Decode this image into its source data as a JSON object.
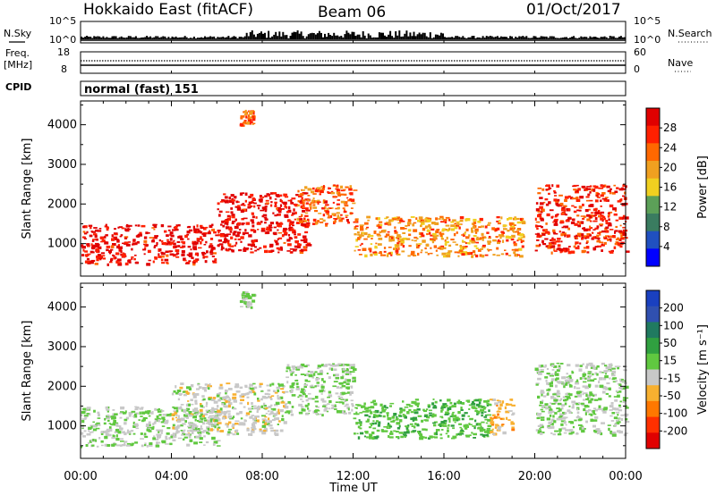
{
  "header": {
    "station": "Hokkaido East (fitACF)",
    "beam": "Beam 06",
    "date": "01/Oct/2017"
  },
  "status_panels": {
    "nsky_label": "N.Sky",
    "nsearch_label": "N.Search",
    "freq_label": "Freq.",
    "freq_unit": "[MHz]",
    "nave_label": "Nave",
    "cpid_label": "CPID",
    "cpid_text": "normal (fast) 151",
    "noise_ticks": [
      "10^5",
      "10^0"
    ],
    "freq_ticks": [
      "18",
      "8"
    ],
    "nave_ticks": [
      "60",
      "0"
    ]
  },
  "chart_data": [
    {
      "type": "heatmap",
      "title": "",
      "xlabel": "Time UT",
      "ylabel": "Slant Range [km]",
      "xlim": [
        0,
        24
      ],
      "ylim": [
        180,
        4600
      ],
      "x_ticks": [
        "00:00",
        "04:00",
        "08:00",
        "12:00",
        "16:00",
        "20:00",
        "00:00"
      ],
      "y_ticks": [
        "1000",
        "2000",
        "3000",
        "4000"
      ],
      "colorbar": {
        "label": "Power [dB]",
        "ticks": [
          "28",
          "24",
          "20",
          "16",
          "12",
          "8",
          "4"
        ],
        "range": [
          0,
          30
        ],
        "colors": [
          "#0000ff",
          "#2050c0",
          "#3a7c60",
          "#5ca058",
          "#f0d020",
          "#f0a020",
          "#ff6800",
          "#ff2000",
          "#e00000"
        ]
      },
      "echo_regions": [
        {
          "t_start": 0.0,
          "t_end": 6.0,
          "range_low": 500,
          "range_high": 1500,
          "value": 28
        },
        {
          "t_start": 6.0,
          "t_end": 10.0,
          "range_low": 800,
          "range_high": 2300,
          "value": 28
        },
        {
          "t_start": 9.5,
          "t_end": 12.0,
          "range_low": 1500,
          "range_high": 2500,
          "value": 22
        },
        {
          "t_start": 12.0,
          "t_end": 19.5,
          "range_low": 700,
          "range_high": 1700,
          "value": 20
        },
        {
          "t_start": 20.0,
          "t_end": 24.0,
          "range_low": 800,
          "range_high": 2500,
          "value": 26
        },
        {
          "t_start": 7.0,
          "t_end": 7.6,
          "range_low": 4000,
          "range_high": 4400,
          "value": 22
        }
      ]
    },
    {
      "type": "heatmap",
      "title": "",
      "xlabel": "Time UT",
      "ylabel": "Slant Range [km]",
      "xlim": [
        0,
        24
      ],
      "ylim": [
        180,
        4600
      ],
      "x_ticks": [
        "00:00",
        "04:00",
        "08:00",
        "12:00",
        "16:00",
        "20:00",
        "00:00"
      ],
      "y_ticks": [
        "1000",
        "2000",
        "3000",
        "4000"
      ],
      "colorbar": {
        "label": "Velocity [m s⁻¹]",
        "ticks": [
          "200",
          "100",
          "50",
          "15",
          "-15",
          "-50",
          "-100",
          "-200"
        ],
        "range": [
          -200,
          200
        ],
        "colors": [
          "#e00000",
          "#ff3000",
          "#ff7800",
          "#f8b030",
          "#c8c8c8",
          "#60c840",
          "#30a040",
          "#207a60",
          "#3050b0",
          "#1a40c0"
        ]
      },
      "echo_regions": [
        {
          "t_start": 0.0,
          "t_end": 6.0,
          "range_low": 500,
          "range_high": 1500,
          "value": 0
        },
        {
          "t_start": 4.0,
          "t_end": 9.0,
          "range_low": 800,
          "range_high": 2100,
          "value": -20
        },
        {
          "t_start": 9.0,
          "t_end": 12.0,
          "range_low": 1300,
          "range_high": 2600,
          "value": 0
        },
        {
          "t_start": 12.0,
          "t_end": 18.0,
          "range_low": 700,
          "range_high": 1700,
          "value": 30
        },
        {
          "t_start": 18.0,
          "t_end": 19.0,
          "range_low": 800,
          "range_high": 1700,
          "value": -60
        },
        {
          "t_start": 20.0,
          "t_end": 24.0,
          "range_low": 800,
          "range_high": 2600,
          "value": 0
        },
        {
          "t_start": 7.0,
          "t_end": 7.6,
          "range_low": 4000,
          "range_high": 4400,
          "value": 0
        }
      ]
    }
  ]
}
